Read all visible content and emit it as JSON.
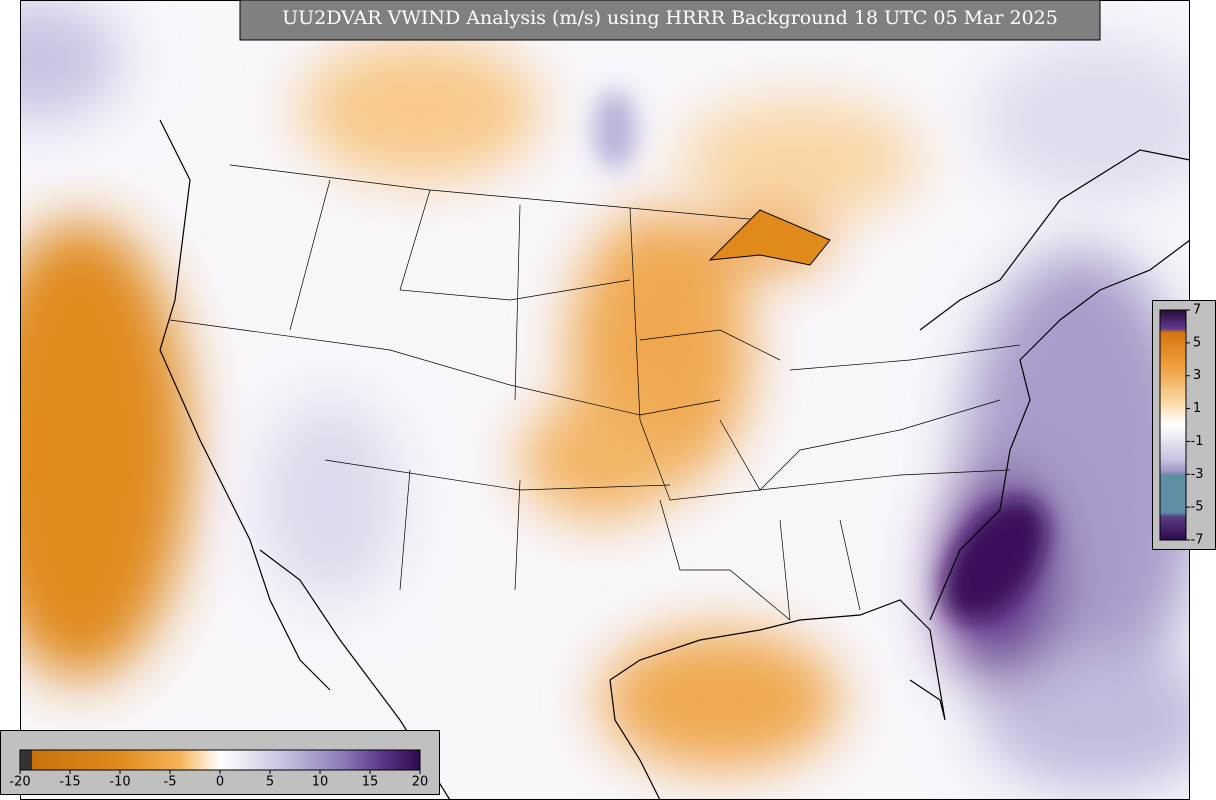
{
  "title": "UU2DVAR VWIND Analysis (m/s) using HRRR Background 18 UTC 05 Mar 2025",
  "colorbar_bottom": {
    "ticks": [
      -20,
      -15,
      -10,
      -5,
      0,
      5,
      10,
      15,
      20
    ]
  },
  "colorbar_right": {
    "ticks": [
      7,
      5,
      3,
      1,
      -1,
      -3,
      -5,
      -7
    ]
  }
}
